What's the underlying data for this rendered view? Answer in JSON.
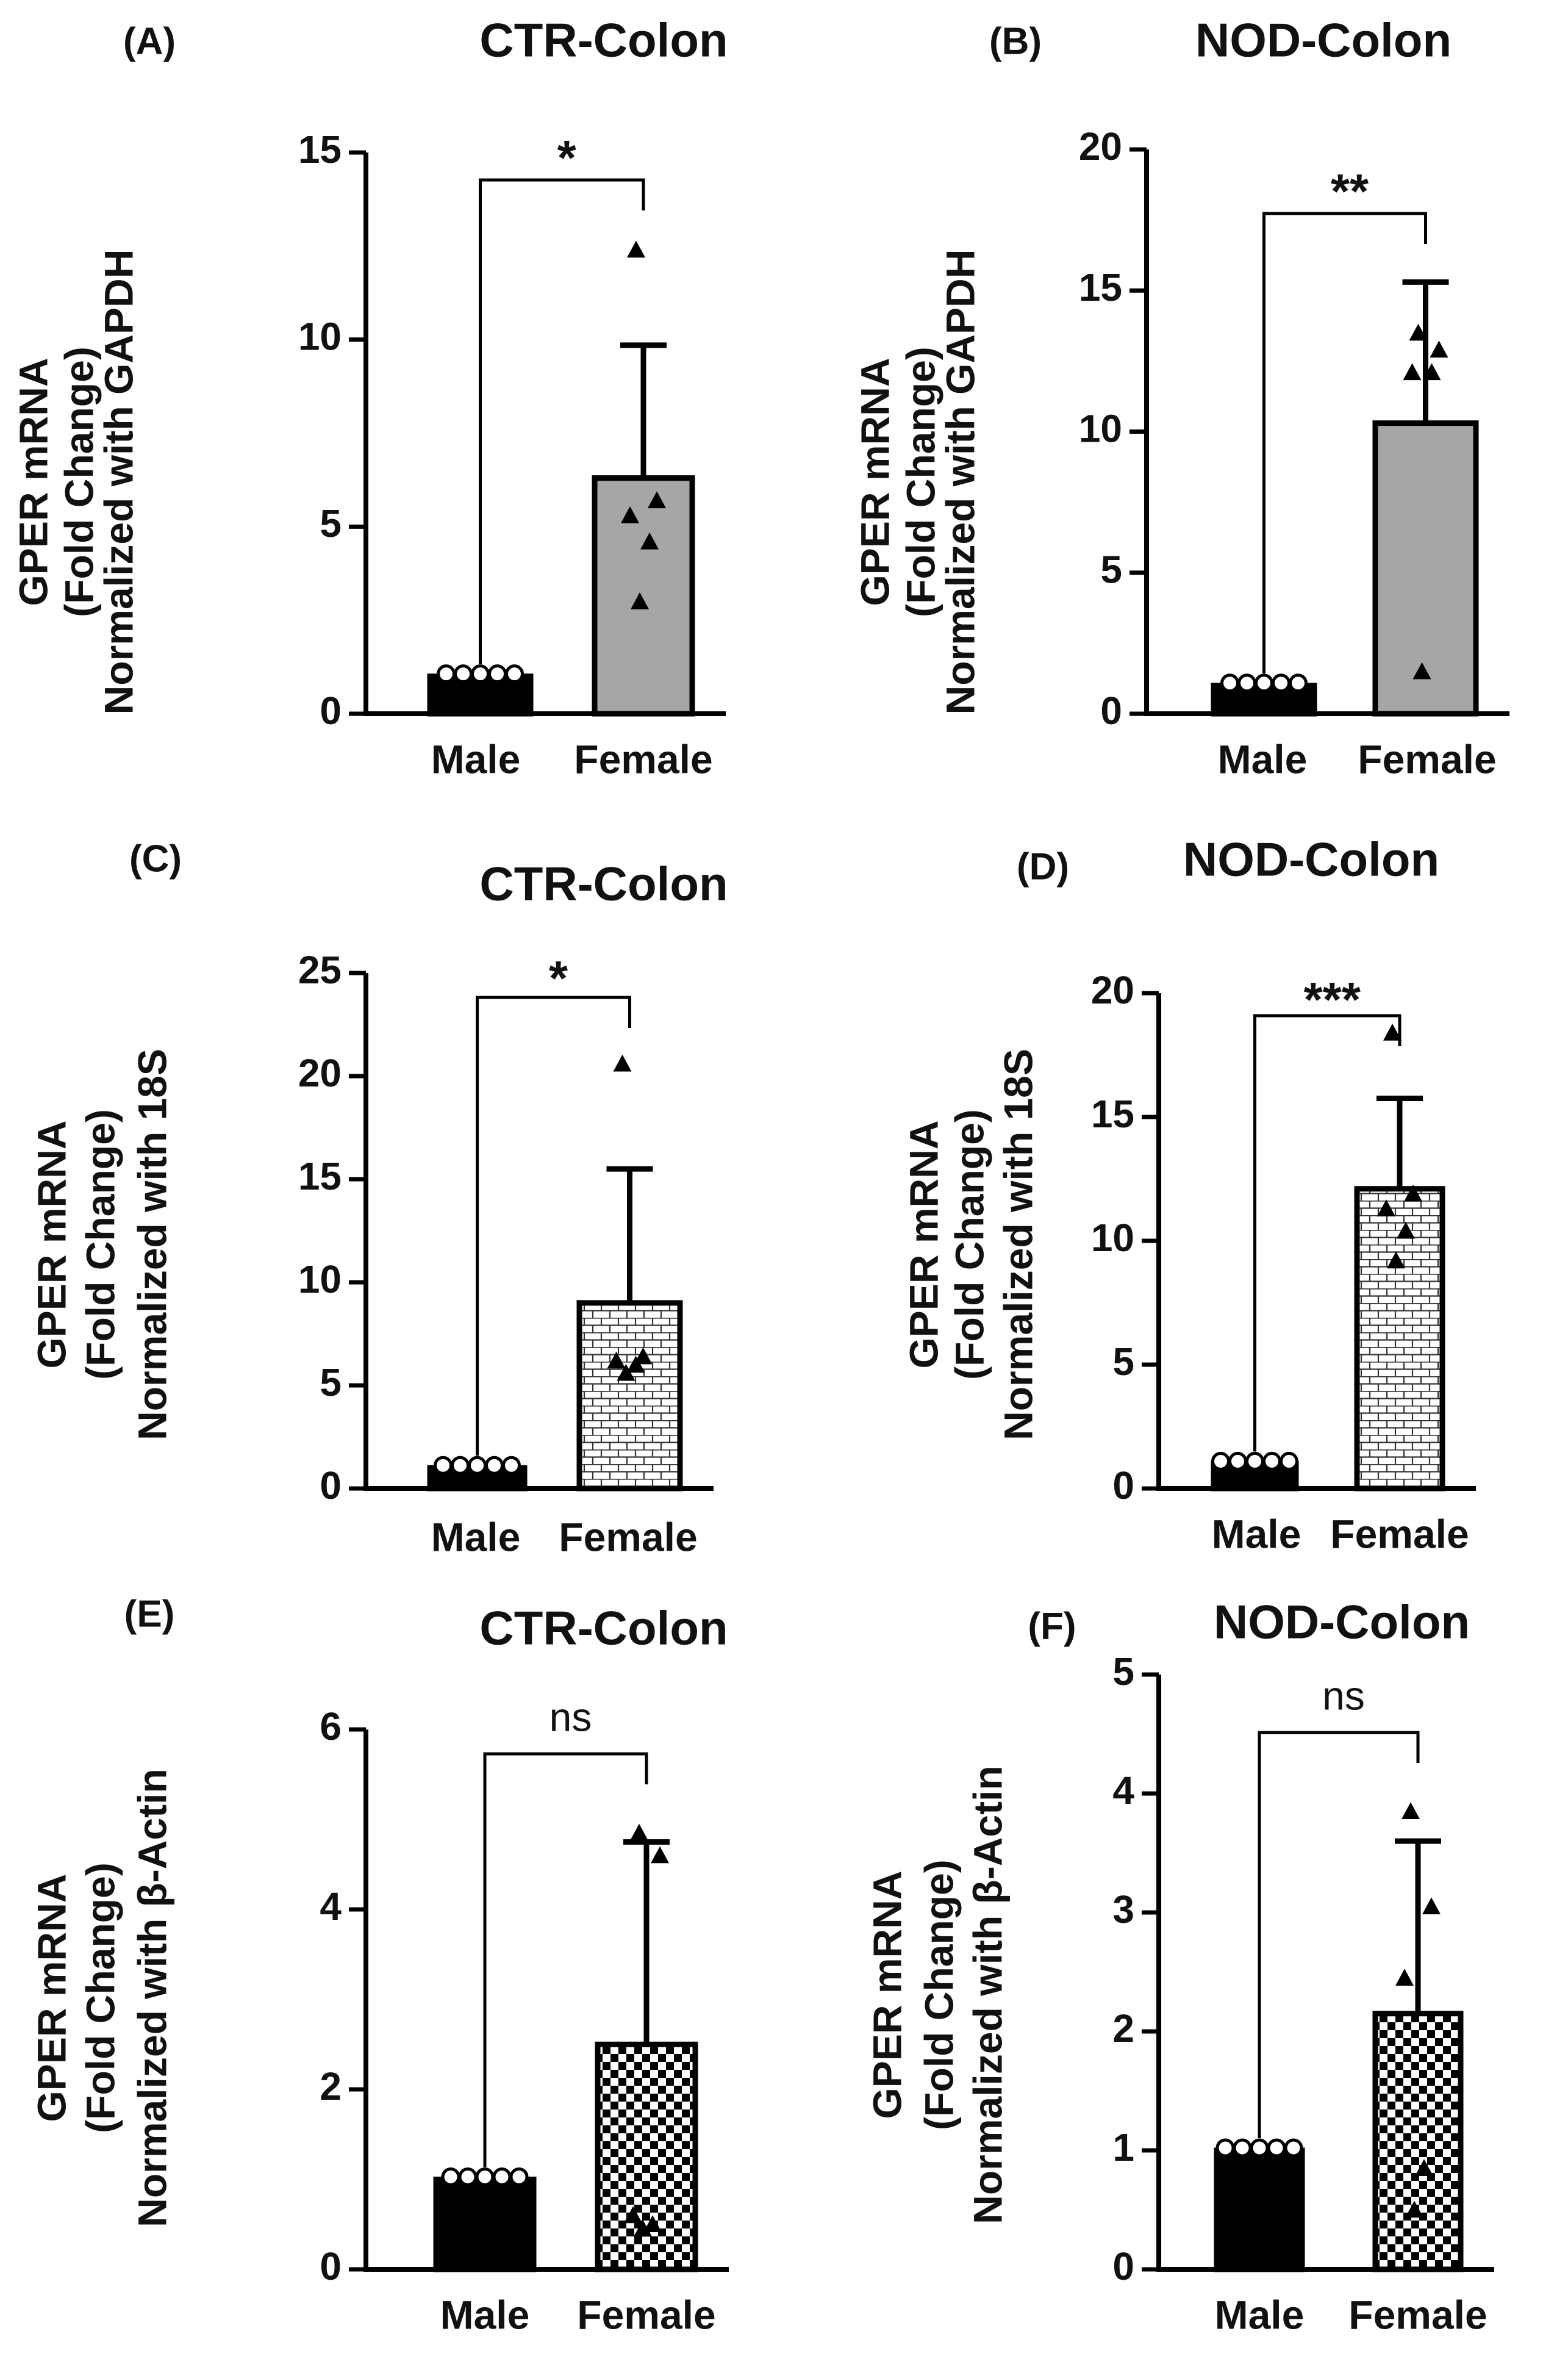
{
  "figure": {
    "panels": [
      "(A)",
      "(B)",
      "(C)",
      "(D)",
      "(E)",
      "(F)"
    ]
  },
  "styles": {
    "male_bar_color": "#000000",
    "female_solid_color": "#a6a6a8",
    "axis_color": "#000000"
  },
  "chart_data": [
    {
      "panel": "(A)",
      "type": "bar",
      "title": "CTR-Colon",
      "ylabel": [
        "GPER mRNA",
        "(Fold Change)",
        "Normalized with GAPDH"
      ],
      "categories": [
        "Male",
        "Female"
      ],
      "values": [
        1.0,
        6.3
      ],
      "error_upper": [
        0,
        3.55
      ],
      "points": [
        [
          1,
          1,
          1,
          1,
          1
        ],
        [
          12.4,
          5.7,
          5.3,
          4.6,
          3.0
        ]
      ],
      "ylim": [
        0,
        15
      ],
      "yticks": [
        0,
        5,
        10,
        15
      ],
      "significance": "*",
      "female_fill": "solid"
    },
    {
      "panel": "(B)",
      "type": "bar",
      "title": "NOD-Colon",
      "ylabel": [
        "GPER mRNA",
        "(Fold Change)",
        "Normalized with GAPDH"
      ],
      "categories": [
        "Male",
        "Female"
      ],
      "values": [
        1.0,
        10.3
      ],
      "error_upper": [
        0,
        5.0
      ],
      "points": [
        [
          1,
          1,
          1,
          1,
          1
        ],
        [
          13.5,
          12.9,
          12.1,
          12.1,
          1.5
        ]
      ],
      "ylim": [
        0,
        20
      ],
      "yticks": [
        0,
        5,
        10,
        15,
        20
      ],
      "significance": "**",
      "female_fill": "solid"
    },
    {
      "panel": "(C)",
      "type": "bar",
      "title": "CTR-Colon",
      "ylabel": [
        "GPER mRNA",
        "(Fold Change)",
        "Normalized with 18S"
      ],
      "categories": [
        "Male",
        "Female"
      ],
      "values": [
        1.0,
        9.0
      ],
      "error_upper": [
        0,
        6.5
      ],
      "points": [
        [
          1,
          1,
          1,
          1,
          1
        ],
        [
          20.6,
          6.4,
          6.2,
          6.0,
          5.6
        ]
      ],
      "ylim": [
        0,
        25
      ],
      "yticks": [
        0,
        5,
        10,
        15,
        20,
        25
      ],
      "significance": "*",
      "female_fill": "brick"
    },
    {
      "panel": "(D)",
      "type": "bar",
      "title": "NOD-Colon",
      "ylabel": [
        "GPER mRNA",
        "(Fold Change)",
        "Normalized with 18S"
      ],
      "categories": [
        "Male",
        "Female"
      ],
      "values": [
        1.0,
        12.1
      ],
      "error_upper": [
        0,
        3.65
      ],
      "points": [
        [
          1,
          1,
          1,
          1,
          1
        ],
        [
          18.4,
          11.9,
          11.3,
          10.4,
          9.2
        ]
      ],
      "ylim": [
        0,
        20
      ],
      "yticks": [
        0,
        5,
        10,
        15,
        20
      ],
      "significance": "***",
      "female_fill": "brick"
    },
    {
      "panel": "(E)",
      "type": "bar",
      "title": "CTR-Colon",
      "ylabel": [
        "GPER mRNA",
        "(Fold Change)",
        "Normalized with β-Actin"
      ],
      "categories": [
        "Male",
        "Female"
      ],
      "values": [
        1.0,
        2.5
      ],
      "error_upper": [
        0,
        2.25
      ],
      "points": [
        [
          1,
          1,
          1,
          1,
          1
        ],
        [
          4.85,
          4.6,
          0.6,
          0.5,
          0.45
        ]
      ],
      "ylim": [
        0,
        6
      ],
      "yticks": [
        0,
        2,
        4,
        6
      ],
      "significance": "ns",
      "female_fill": "checker"
    },
    {
      "panel": "(F)",
      "type": "bar",
      "title": "NOD-Colon",
      "ylabel": [
        "GPER mRNA",
        "(Fold Change)",
        "Normalized with β-Actin"
      ],
      "categories": [
        "Male",
        "Female"
      ],
      "values": [
        1.0,
        2.15
      ],
      "error_upper": [
        0,
        1.45
      ],
      "points": [
        [
          1,
          1,
          1,
          1,
          1
        ],
        [
          3.85,
          3.05,
          2.45,
          0.85,
          0.5
        ]
      ],
      "ylim": [
        0,
        5
      ],
      "yticks": [
        0,
        1,
        2,
        3,
        4,
        5
      ],
      "significance": "ns",
      "female_fill": "checker"
    }
  ]
}
